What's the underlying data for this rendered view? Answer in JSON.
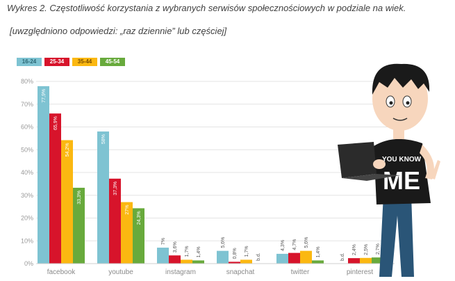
{
  "header": {
    "title": "Wykres 2. Częstotliwość korzystania z wybranych serwisów społecznościowych w podziale na wiek.",
    "subtitle": "[uwzględniono odpowiedzi: „raz dziennie” lub częściej]"
  },
  "mascot": {
    "shirt_text_top": "YOU KNOW",
    "shirt_text_bottom": "ME"
  },
  "colors": {
    "s1": "#7ec3d2",
    "s2": "#d7142b",
    "s3": "#fbb811",
    "s4": "#68aa3c"
  },
  "chart_data": {
    "type": "bar",
    "categories": [
      "facebook",
      "youtube",
      "instagram",
      "snapchat",
      "twitter",
      "pinterest"
    ],
    "ylim": [
      0,
      80
    ],
    "yticks": [
      "0%",
      "10%",
      "20%",
      "30%",
      "40%",
      "50%",
      "60%",
      "70%",
      "80%"
    ],
    "grid": true,
    "legend_position": "top-left",
    "series": [
      {
        "name": "16-24",
        "values": [
          77.9,
          58,
          7,
          5.6,
          4.3,
          null
        ],
        "labels": [
          "77,9%",
          "58%",
          "7%",
          "5,6%",
          "4,3%",
          "b.d."
        ]
      },
      {
        "name": "25-34",
        "values": [
          65.9,
          37.3,
          3.6,
          0.8,
          4.7,
          2.4
        ],
        "labels": [
          "65,9%",
          "37,3%",
          "3,6%",
          "0,8%",
          "4,7%",
          "2,4%"
        ]
      },
      {
        "name": "35-44",
        "values": [
          54.2,
          27,
          1.7,
          1.7,
          5.6,
          2.5
        ],
        "labels": [
          "54,2%",
          "27%",
          "1,7%",
          "1,7%",
          "5,6%",
          "2,5%"
        ]
      },
      {
        "name": "45-54",
        "values": [
          33.3,
          24.3,
          1.4,
          null,
          1.4,
          2.7
        ],
        "labels": [
          "33,3%",
          "24,3%",
          "1,4%",
          "b.d.",
          "1,4%",
          "2,7%"
        ]
      }
    ]
  }
}
